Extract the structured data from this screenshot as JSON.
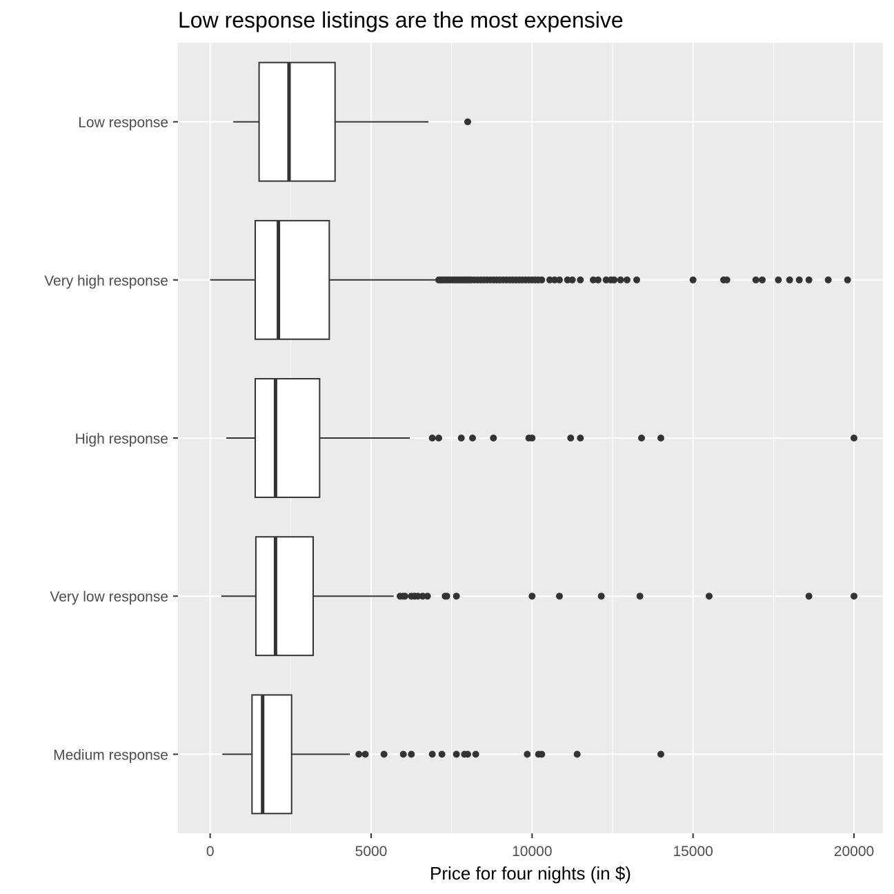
{
  "chart_data": {
    "type": "boxplot",
    "orientation": "horizontal",
    "title": "Low response listings are the most expensive",
    "xlabel": "Price for four nights (in $)",
    "ylabel": "",
    "xlim": [
      -1000,
      20900
    ],
    "x_ticks": [
      0,
      5000,
      10000,
      15000,
      20000
    ],
    "x_tick_labels": [
      "0",
      "5000",
      "10000",
      "15000",
      "20000"
    ],
    "grid": true,
    "legend": "none",
    "colors": {
      "panel_background": "#ebebeb",
      "grid_line": "#ffffff",
      "box_fill": "#ffffff",
      "box_stroke": "#333333",
      "outlier": "#333333"
    },
    "categories": [
      "Low response",
      "Very high response",
      "High response",
      "Very low response",
      "Medium response"
    ],
    "boxes": [
      {
        "category": "Low response",
        "whisker_low": 720,
        "q1": 1520,
        "median": 2450,
        "q3": 3880,
        "whisker_high": 6780,
        "outliers": [
          8000
        ]
      },
      {
        "category": "Very high response",
        "whisker_low": 0,
        "q1": 1400,
        "median": 2120,
        "q3": 3700,
        "whisker_high": 7050,
        "outliers": [
          7100,
          7150,
          7200,
          7250,
          7300,
          7350,
          7400,
          7450,
          7500,
          7550,
          7600,
          7650,
          7700,
          7750,
          7800,
          7850,
          7900,
          7950,
          8000,
          8050,
          8100,
          8200,
          8300,
          8400,
          8500,
          8600,
          8700,
          8800,
          8900,
          9000,
          9100,
          9200,
          9300,
          9400,
          9500,
          9600,
          9700,
          9800,
          9900,
          10000,
          10100,
          10200,
          10300,
          10550,
          10700,
          10850,
          11100,
          11250,
          11500,
          11900,
          12050,
          12300,
          12450,
          12550,
          12750,
          12950,
          13250,
          15000,
          15950,
          16050,
          16950,
          17150,
          17650,
          18000,
          18300,
          18600,
          19200,
          19800
        ]
      },
      {
        "category": "High response",
        "whisker_low": 500,
        "q1": 1400,
        "median": 2030,
        "q3": 3400,
        "whisker_high": 6200,
        "outliers": [
          6900,
          7100,
          7800,
          8150,
          8800,
          9900,
          10000,
          11200,
          11500,
          13400,
          14000,
          20000
        ]
      },
      {
        "category": "Very low response",
        "whisker_low": 350,
        "q1": 1420,
        "median": 2030,
        "q3": 3200,
        "whisker_high": 5700,
        "outliers": [
          5900,
          6000,
          6050,
          6250,
          6350,
          6450,
          6600,
          6750,
          7300,
          7350,
          7650,
          10000,
          10850,
          12150,
          13350,
          15500,
          18600,
          20000
        ]
      },
      {
        "category": "Medium response",
        "whisker_low": 380,
        "q1": 1300,
        "median": 1630,
        "q3": 2530,
        "whisker_high": 4340,
        "outliers": [
          4620,
          4820,
          5400,
          6000,
          6250,
          6900,
          7200,
          7650,
          7900,
          8000,
          8250,
          9850,
          10200,
          10300,
          11400,
          14000
        ]
      }
    ]
  }
}
